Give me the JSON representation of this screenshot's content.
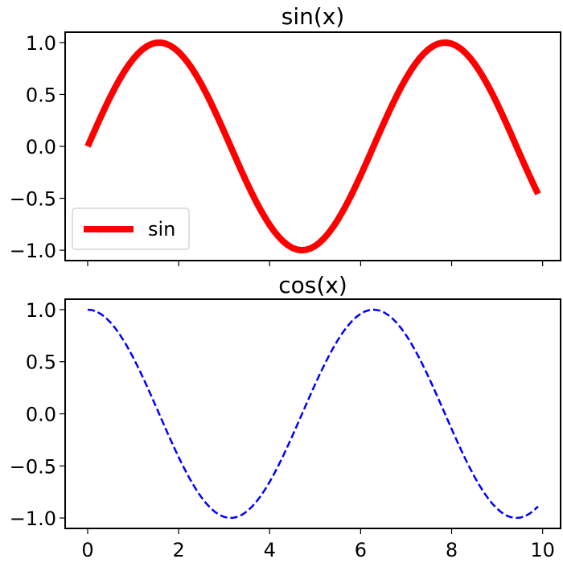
{
  "chart_data": [
    {
      "type": "line",
      "title": "sin(x)",
      "xlabel": "",
      "ylabel": "",
      "xlim": [
        -0.495,
        10.395
      ],
      "ylim": [
        -1.1,
        1.1
      ],
      "xticks": [
        0,
        2,
        4,
        6,
        8,
        10
      ],
      "xtick_labels_visible": false,
      "yticks": [
        -1.0,
        -0.5,
        0.0,
        0.5,
        1.0
      ],
      "ytick_labels": [
        "−1.0",
        "−0.5",
        "0.0",
        "0.5",
        "1.0"
      ],
      "grid": false,
      "legend": {
        "placement": "lower-left",
        "entries": [
          "sin"
        ]
      },
      "series": [
        {
          "name": "sin",
          "function": "sin",
          "x_start": 0,
          "x_end": 9.9,
          "x_step": 0.1,
          "color": "#ff0000",
          "line_style": "solid"
        }
      ]
    },
    {
      "type": "line",
      "title": "cos(x)",
      "xlabel": "",
      "ylabel": "",
      "xlim": [
        -0.495,
        10.395
      ],
      "ylim": [
        -1.1,
        1.1
      ],
      "xticks": [
        0,
        2,
        4,
        6,
        8,
        10
      ],
      "xtick_labels": [
        "0",
        "2",
        "4",
        "6",
        "8",
        "10"
      ],
      "yticks": [
        -1.0,
        -0.5,
        0.0,
        0.5,
        1.0
      ],
      "ytick_labels": [
        "−1.0",
        "−0.5",
        "0.0",
        "0.5",
        "1.0"
      ],
      "grid": false,
      "series": [
        {
          "function": "cos",
          "x_start": 0,
          "x_end": 9.9,
          "x_step": 0.1,
          "color": "#0000ff",
          "line_style": "dashed"
        }
      ]
    }
  ]
}
